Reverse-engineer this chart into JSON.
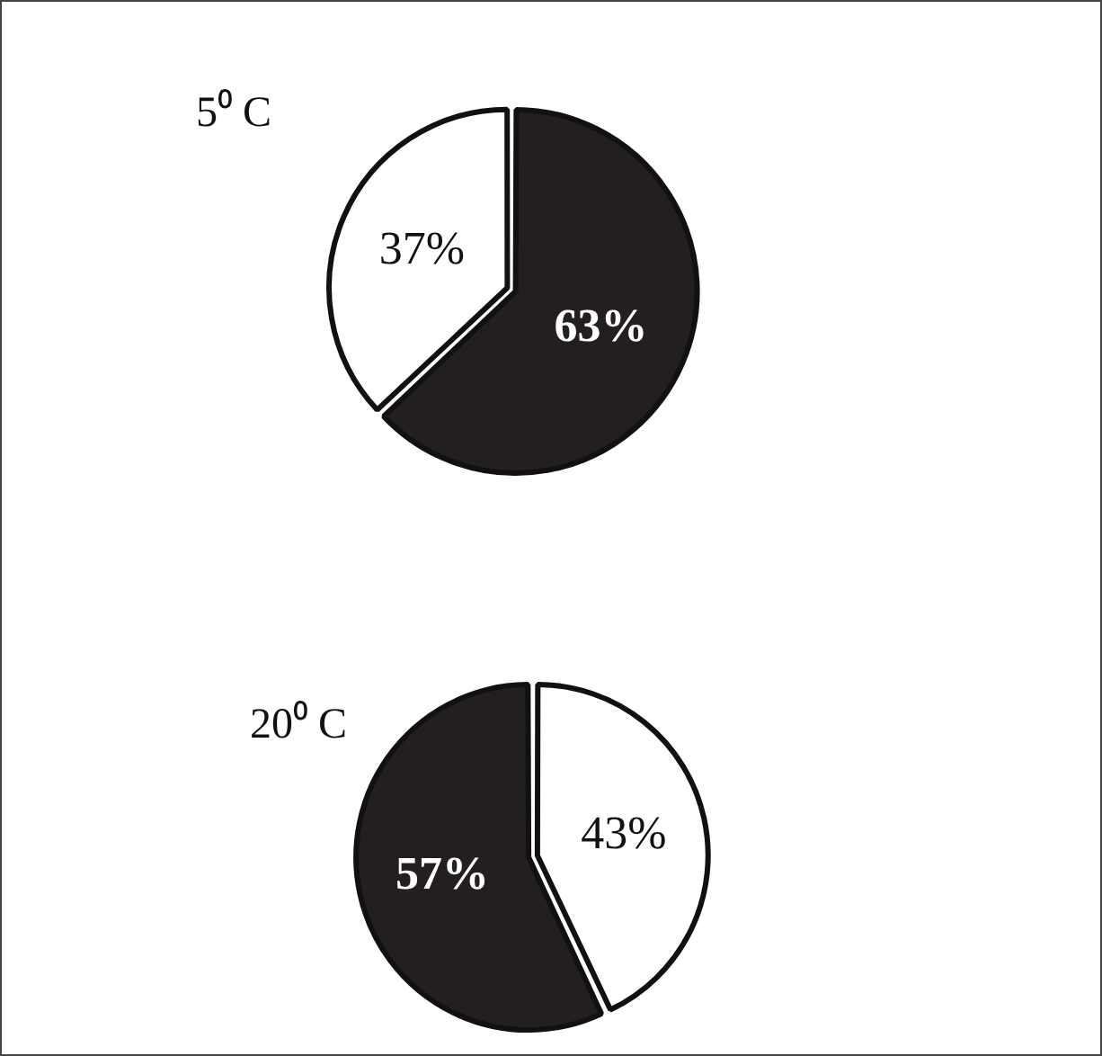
{
  "chart_data": [
    {
      "type": "pie",
      "title": "5⁰ C",
      "categories": [
        null,
        null
      ],
      "values": [
        63,
        37
      ],
      "colors": [
        "#231f20",
        "#ffffff"
      ],
      "value_labels": [
        "63%",
        "37%"
      ],
      "legend": false
    },
    {
      "type": "pie",
      "title": "20⁰ C",
      "categories": [
        null,
        null
      ],
      "values": [
        43,
        57
      ],
      "colors": [
        "#ffffff",
        "#231f20"
      ],
      "value_labels": [
        "43%",
        "57%"
      ],
      "legend": false
    }
  ]
}
